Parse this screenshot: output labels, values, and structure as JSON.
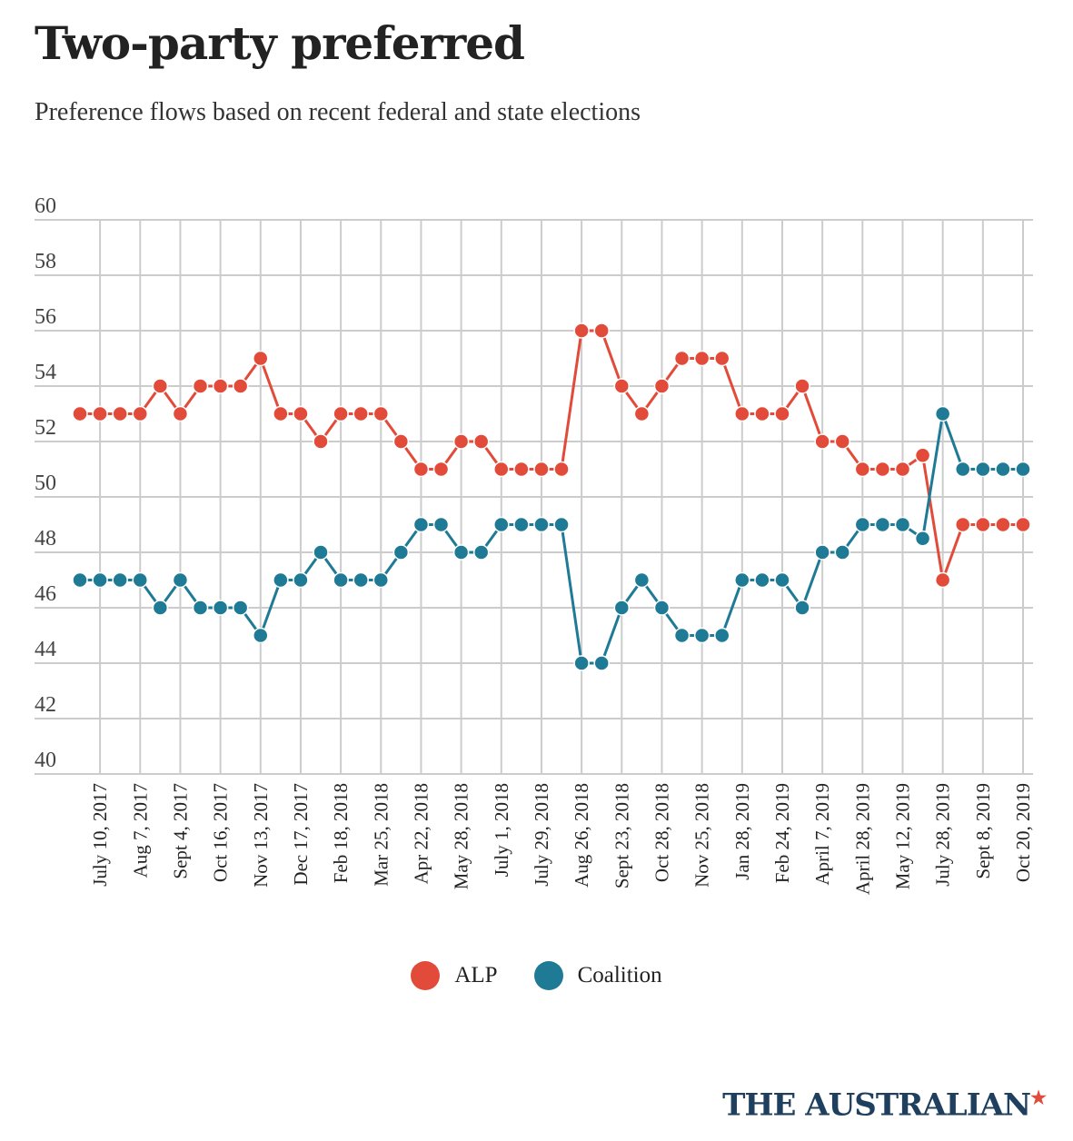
{
  "title": "Two-party preferred",
  "subtitle": "Preference flows based on recent federal and state elections",
  "brand": "THE AUSTRALIAN",
  "colors": {
    "alp": "#e24b3a",
    "coalition": "#1f7a95",
    "grid": "#cccccc"
  },
  "chart_data": {
    "type": "line",
    "ylim": [
      40,
      60
    ],
    "y_ticks": [
      "40",
      "42",
      "44",
      "46",
      "48",
      "50",
      "52",
      "54",
      "56",
      "58",
      "60"
    ],
    "x_tick_labels": [
      "July 10, 2017",
      "Aug 7, 2017",
      "Sept 4, 2017",
      "Oct 16, 2017",
      "Nov 13, 2017",
      "Dec 17, 2017",
      "Feb 18, 2018",
      "Mar 25, 2018",
      "Apr 22, 2018",
      "May 28, 2018",
      "July 1, 2018",
      "July 29, 2018",
      "Aug 26, 2018",
      "Sept 23, 2018",
      "Oct 28, 2018",
      "Nov 25, 2018",
      "Jan 28, 2019",
      "Feb 24, 2019",
      "April 7, 2019",
      "April 28, 2019",
      "May 12, 2019",
      "July 28, 2019",
      "Sept 8, 2019",
      "Oct 20, 2019"
    ],
    "series": [
      {
        "name": "ALP",
        "values": [
          53,
          53,
          53,
          53,
          54,
          53,
          54,
          54,
          54,
          55,
          53,
          53,
          52,
          53,
          53,
          53,
          52,
          51,
          51,
          52,
          52,
          51,
          51,
          51,
          51,
          56,
          56,
          54,
          53,
          54,
          55,
          55,
          55,
          53,
          53,
          53,
          54,
          52,
          52,
          51,
          51,
          51,
          51.5,
          47,
          49,
          49,
          49,
          49
        ]
      },
      {
        "name": "Coalition",
        "values": [
          47,
          47,
          47,
          47,
          46,
          47,
          46,
          46,
          46,
          45,
          47,
          47,
          48,
          47,
          47,
          47,
          48,
          49,
          49,
          48,
          48,
          49,
          49,
          49,
          49,
          44,
          44,
          46,
          47,
          46,
          45,
          45,
          45,
          47,
          47,
          47,
          46,
          48,
          48,
          49,
          49,
          49,
          48.5,
          53,
          51,
          51,
          51,
          51
        ]
      }
    ],
    "legend": "bottom-center",
    "grid": true
  }
}
